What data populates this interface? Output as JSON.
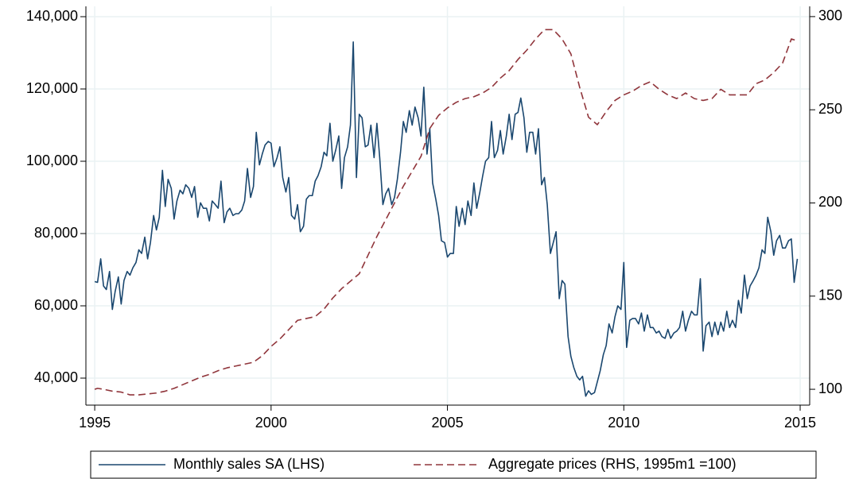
{
  "chart_data": {
    "type": "line",
    "xlim": [
      1994.75,
      2015.27
    ],
    "xticks": [
      1995,
      2000,
      2005,
      2010,
      2015
    ],
    "ylim": [
      32530,
      142860
    ],
    "yticks": [
      {
        "value": 40000,
        "label": "40,000"
      },
      {
        "value": 60000,
        "label": "60,000"
      },
      {
        "value": 80000,
        "label": "80,000"
      },
      {
        "value": 100000,
        "label": "100,000"
      },
      {
        "value": 120000,
        "label": "120,000"
      },
      {
        "value": 140000,
        "label": "140,000"
      }
    ],
    "y2lim": [
      91.5,
      305.5
    ],
    "y2ticks": [
      100,
      150,
      200,
      250,
      300
    ],
    "grid": true,
    "legend": "bottom",
    "series": [
      {
        "name": "Monthly sales SA (LHS)",
        "color": "#1a476f",
        "axis": "y",
        "x": [
          1995,
          1995.08,
          1995.17,
          1995.25,
          1995.33,
          1995.42,
          1995.5,
          1995.58,
          1995.67,
          1995.75,
          1995.83,
          1995.92,
          1996,
          1996.08,
          1996.17,
          1996.25,
          1996.33,
          1996.42,
          1996.5,
          1996.58,
          1996.67,
          1996.75,
          1996.83,
          1996.92,
          1997,
          1997.08,
          1997.17,
          1997.25,
          1997.33,
          1997.42,
          1997.5,
          1997.58,
          1997.67,
          1997.75,
          1997.83,
          1997.92,
          1998,
          1998.08,
          1998.17,
          1998.25,
          1998.33,
          1998.42,
          1998.5,
          1998.58,
          1998.67,
          1998.75,
          1998.83,
          1998.92,
          1999,
          1999.08,
          1999.17,
          1999.25,
          1999.33,
          1999.42,
          1999.5,
          1999.58,
          1999.67,
          1999.75,
          1999.83,
          1999.92,
          2000,
          2000.08,
          2000.17,
          2000.25,
          2000.33,
          2000.42,
          2000.5,
          2000.58,
          2000.67,
          2000.75,
          2000.83,
          2000.92,
          2001,
          2001.08,
          2001.17,
          2001.25,
          2001.33,
          2001.42,
          2001.5,
          2001.58,
          2001.67,
          2001.75,
          2001.83,
          2001.92,
          2002,
          2002.08,
          2002.17,
          2002.25,
          2002.33,
          2002.42,
          2002.5,
          2002.58,
          2002.67,
          2002.75,
          2002.83,
          2002.92,
          2003,
          2003.08,
          2003.17,
          2003.25,
          2003.33,
          2003.42,
          2003.5,
          2003.58,
          2003.67,
          2003.75,
          2003.83,
          2003.92,
          2004,
          2004.08,
          2004.17,
          2004.25,
          2004.33,
          2004.42,
          2004.5,
          2004.58,
          2004.67,
          2004.75,
          2004.83,
          2004.92,
          2005,
          2005.08,
          2005.17,
          2005.25,
          2005.33,
          2005.42,
          2005.5,
          2005.58,
          2005.67,
          2005.75,
          2005.83,
          2005.92,
          2006,
          2006.08,
          2006.17,
          2006.25,
          2006.33,
          2006.42,
          2006.5,
          2006.58,
          2006.67,
          2006.75,
          2006.83,
          2006.92,
          2007,
          2007.08,
          2007.17,
          2007.25,
          2007.33,
          2007.42,
          2007.5,
          2007.58,
          2007.67,
          2007.75,
          2007.83,
          2007.92,
          2008,
          2008.08,
          2008.17,
          2008.25,
          2008.33,
          2008.42,
          2008.5,
          2008.58,
          2008.67,
          2008.75,
          2008.83,
          2008.92,
          2009,
          2009.08,
          2009.17,
          2009.25,
          2009.33,
          2009.42,
          2009.5,
          2009.58,
          2009.67,
          2009.75,
          2009.83,
          2009.92,
          2010,
          2010.08,
          2010.17,
          2010.25,
          2010.33,
          2010.42,
          2010.5,
          2010.58,
          2010.67,
          2010.75,
          2010.83,
          2010.92,
          2011,
          2011.08,
          2011.17,
          2011.25,
          2011.33,
          2011.42,
          2011.5,
          2011.58,
          2011.67,
          2011.75,
          2011.83,
          2011.92,
          2012,
          2012.08,
          2012.17,
          2012.25,
          2012.33,
          2012.42,
          2012.5,
          2012.58,
          2012.67,
          2012.75,
          2012.83,
          2012.92,
          2013,
          2013.08,
          2013.17,
          2013.25,
          2013.33,
          2013.42,
          2013.5,
          2013.58,
          2013.67,
          2013.75,
          2013.83,
          2013.92,
          2014,
          2014.08,
          2014.17,
          2014.25,
          2014.33,
          2014.42,
          2014.5,
          2014.58,
          2014.67,
          2014.75,
          2014.83,
          2014.92
        ],
        "values": [
          66700,
          66500,
          73000,
          65500,
          64500,
          69500,
          59000,
          64000,
          68000,
          60500,
          67000,
          69500,
          68500,
          70500,
          72000,
          75500,
          74500,
          79000,
          73000,
          77500,
          85000,
          81000,
          84500,
          97500,
          87500,
          95000,
          92500,
          84000,
          89000,
          92000,
          91000,
          93500,
          92500,
          90000,
          93000,
          84500,
          88500,
          87000,
          87000,
          83500,
          89000,
          88000,
          87000,
          94500,
          83000,
          86000,
          87000,
          85000,
          85500,
          85500,
          86500,
          89000,
          98000,
          90000,
          93000,
          108000,
          99000,
          102000,
          104500,
          105500,
          105000,
          98500,
          101000,
          104000,
          95500,
          91500,
          95500,
          85000,
          84000,
          88000,
          80500,
          82000,
          89500,
          90500,
          90500,
          94500,
          96000,
          98500,
          102500,
          101500,
          110500,
          100000,
          103000,
          107000,
          92500,
          101000,
          104000,
          110000,
          133000,
          95500,
          113000,
          112000,
          104000,
          104500,
          110000,
          101000,
          110500,
          101000,
          88000,
          91000,
          92500,
          88000,
          90000,
          95000,
          102500,
          111000,
          108000,
          114000,
          110000,
          115000,
          112000,
          107000,
          120500,
          102000,
          109000,
          94000,
          89500,
          85000,
          78000,
          77500,
          73500,
          74500,
          74500,
          87500,
          82000,
          87000,
          82500,
          89000,
          85000,
          94000,
          87000,
          91500,
          96000,
          100000,
          101000,
          111000,
          101000,
          103000,
          108500,
          102000,
          107000,
          113000,
          106000,
          113000,
          113500,
          117500,
          112000,
          102500,
          108000,
          108000,
          102000,
          109000,
          93500,
          95500,
          88000,
          74500,
          77500,
          80500,
          62000,
          67000,
          66000,
          51500,
          46000,
          43000,
          40500,
          39500,
          40500,
          35000,
          36500,
          35500,
          36000,
          39000,
          42000,
          46500,
          49000,
          55000,
          52500,
          57000,
          60000,
          59000,
          72000,
          48500,
          56000,
          56500,
          56500,
          55000,
          58000,
          53000,
          57500,
          54000,
          54000,
          52500,
          53000,
          51500,
          51000,
          53500,
          51000,
          52500,
          53000,
          54000,
          58500,
          53000,
          56000,
          58500,
          57500,
          57500,
          67500,
          47500,
          54500,
          55500,
          51500,
          55500,
          52000,
          55500,
          53000,
          58500,
          54000,
          56000,
          54000,
          61500,
          58000,
          68500,
          62000,
          65500,
          67000,
          68500,
          70500,
          75500,
          74500,
          84500,
          80500,
          74000,
          78000,
          79500,
          76000,
          76000,
          78000,
          78500,
          66500,
          73000
        ]
      },
      {
        "name": "Aggregate prices (RHS, 1995m1 =100)",
        "color": "#90353b",
        "axis": "y2",
        "style": "dashed",
        "x": [
          1995,
          1995.08,
          1995.25,
          1995.5,
          1995.75,
          1996,
          1996.25,
          1996.5,
          1996.75,
          1997,
          1997.25,
          1997.5,
          1997.75,
          1998,
          1998.25,
          1998.5,
          1998.75,
          1999,
          1999.25,
          1999.5,
          1999.75,
          2000,
          2000.25,
          2000.5,
          2000.75,
          2001,
          2001.25,
          2001.5,
          2001.75,
          2002,
          2002.25,
          2002.5,
          2002.75,
          2003,
          2003.25,
          2003.5,
          2003.75,
          2004,
          2004.25,
          2004.5,
          2004.75,
          2005,
          2005.25,
          2005.5,
          2005.75,
          2006,
          2006.25,
          2006.5,
          2006.75,
          2007,
          2007.25,
          2007.5,
          2007.75,
          2008,
          2008.25,
          2008.5,
          2008.75,
          2009,
          2009.25,
          2009.5,
          2009.75,
          2010,
          2010.25,
          2010.5,
          2010.75,
          2011,
          2011.25,
          2011.5,
          2011.75,
          2012,
          2012.25,
          2012.5,
          2012.75,
          2013,
          2013.25,
          2013.5,
          2013.75,
          2014,
          2014.25,
          2014.5,
          2014.75,
          2014.92
        ],
        "values": [
          100,
          100.5,
          100,
          99,
          98.5,
          97,
          97,
          97.5,
          98,
          99,
          100.5,
          102.5,
          104.5,
          106.5,
          108,
          110,
          111.5,
          112.5,
          113.5,
          114.5,
          118,
          123,
          127,
          132,
          137,
          138,
          139,
          143,
          149,
          154,
          158,
          162,
          172,
          182,
          191,
          200,
          209,
          217,
          225,
          240,
          247,
          251,
          254,
          256,
          257,
          259,
          262,
          267,
          271,
          277,
          282,
          288,
          293,
          293,
          288,
          280,
          262,
          246,
          242,
          249,
          255,
          258,
          260,
          263,
          265,
          261,
          258,
          256,
          259,
          256,
          255,
          256,
          261,
          258,
          258,
          258,
          264,
          266,
          270,
          275,
          288,
          287
        ]
      }
    ]
  }
}
